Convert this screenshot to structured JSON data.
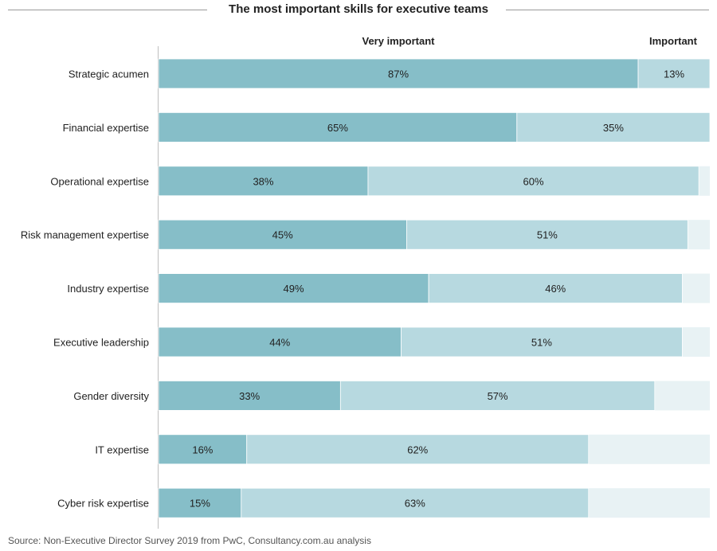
{
  "title": "The most important skills for executive teams",
  "source": "Source: Non-Executive Director Survey 2019 from PwC, Consultancy.com.au analysis",
  "colors": {
    "very_important": "#86bec8",
    "important": "#b7d9e0",
    "remainder": "#e8f2f4",
    "axis": "#bfbfbf"
  },
  "chart_data": {
    "type": "bar",
    "orientation": "horizontal",
    "stacked": true,
    "title": "The most important skills for executive teams",
    "legend_position": "top",
    "xlim": [
      0,
      100
    ],
    "categories": [
      "Strategic acumen",
      "Financial expertise",
      "Operational expertise",
      "Risk management expertise",
      "Industry expertise",
      "Executive leadership",
      "Gender diversity",
      "IT expertise",
      "Cyber risk expertise"
    ],
    "series": [
      {
        "name": "Very important",
        "values": [
          87,
          65,
          38,
          45,
          49,
          44,
          33,
          16,
          15
        ],
        "labels": [
          "87%",
          "65%",
          "38%",
          "45%",
          "49%",
          "44%",
          "33%",
          "16%",
          "15%"
        ]
      },
      {
        "name": "Important",
        "values": [
          13,
          35,
          60,
          51,
          46,
          51,
          57,
          62,
          63
        ],
        "labels": [
          "13%",
          "35%",
          "60%",
          "51%",
          "46%",
          "51%",
          "57%",
          "62%",
          "63%"
        ]
      }
    ]
  }
}
